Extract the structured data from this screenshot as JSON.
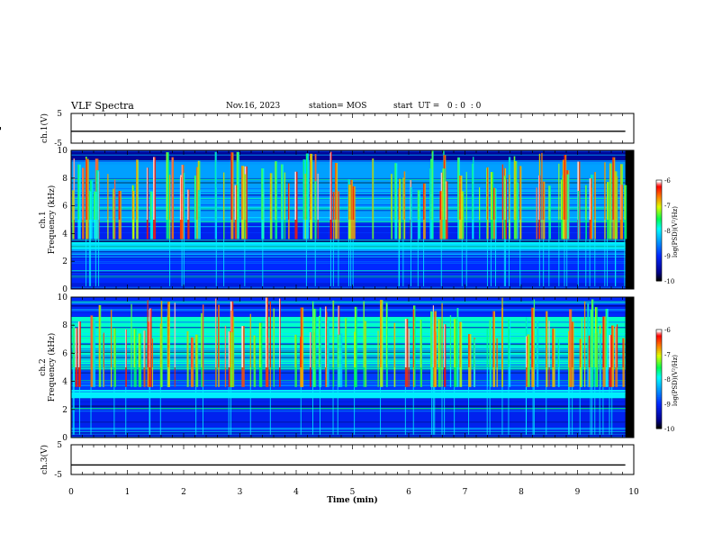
{
  "header": {
    "title": "VLF Spectra",
    "date": "Nov.16, 2023",
    "station": "station= MOS",
    "start": "start  UT =   0 : 0  : 0"
  },
  "chart_data": [
    {
      "type": "line",
      "name": "ch1-voltage",
      "ylabel": "ch.1(V)",
      "ylim": [
        -5,
        5
      ],
      "yticks": [
        "5",
        "-5"
      ],
      "x": [
        0,
        1,
        2,
        3,
        4,
        5,
        6,
        7,
        8,
        9,
        9.85
      ],
      "values": [
        -1,
        -1,
        -1,
        -1,
        -1,
        -1,
        -1,
        -1,
        -1,
        -1,
        -1
      ]
    },
    {
      "type": "heatmap",
      "name": "ch1-spectrogram",
      "ylabel": "ch.1\nFrequency (kHz)",
      "ylabel_ch": "ch.1",
      "ylabel_freq": "Frequency (kHz)",
      "ylim": [
        0,
        10
      ],
      "yticks": [
        "0",
        "2",
        "4",
        "6",
        "8",
        "10"
      ],
      "xlim": [
        0,
        10
      ],
      "data_end_min": 9.85,
      "color_scale": {
        "label": "log(PSD)(V²/Hz)",
        "range": [
          -10,
          -6
        ],
        "ticks": [
          "-6",
          "-7",
          "-8",
          "-9",
          "-10"
        ]
      },
      "bands_khz": [
        {
          "from": 0.0,
          "to": 0.4,
          "level": -9.2
        },
        {
          "from": 0.4,
          "to": 2.4,
          "level": -9.0
        },
        {
          "from": 2.4,
          "to": 2.8,
          "level": -8.6
        },
        {
          "from": 2.8,
          "to": 3.4,
          "level": -8.0
        },
        {
          "from": 3.4,
          "to": 4.8,
          "level": -9.1
        },
        {
          "from": 4.8,
          "to": 9.3,
          "level": -8.4
        },
        {
          "from": 9.3,
          "to": 10.0,
          "level": -9.6
        }
      ]
    },
    {
      "type": "heatmap",
      "name": "ch2-spectrogram",
      "ylabel": "ch.2\nFrequency (kHz)",
      "ylabel_ch": "ch.2",
      "ylabel_freq": "Frequency (kHz)",
      "ylim": [
        0,
        10
      ],
      "yticks": [
        "0",
        "2",
        "4",
        "6",
        "8",
        "10"
      ],
      "xlim": [
        0,
        10
      ],
      "data_end_min": 9.85,
      "color_scale": {
        "label": "log(PSD)(V²/Hz)",
        "range": [
          -10,
          -6
        ],
        "ticks": [
          "-6",
          "-7",
          "-8",
          "-9",
          "-10"
        ]
      },
      "bands_khz": [
        {
          "from": 0.0,
          "to": 0.4,
          "level": -9.3
        },
        {
          "from": 0.4,
          "to": 2.8,
          "level": -9.1
        },
        {
          "from": 2.8,
          "to": 3.4,
          "level": -8.0
        },
        {
          "from": 3.4,
          "to": 4.8,
          "level": -8.9
        },
        {
          "from": 4.8,
          "to": 8.6,
          "level": -7.8
        },
        {
          "from": 8.6,
          "to": 10.0,
          "level": -9.0
        }
      ]
    },
    {
      "type": "line",
      "name": "ch3-voltage",
      "ylabel": "ch.3(V)",
      "ylim": [
        -5,
        5
      ],
      "yticks": [
        "5",
        "-5"
      ],
      "x": [
        0,
        1,
        2,
        3,
        4,
        5,
        6,
        7,
        8,
        9,
        9.85
      ],
      "values": [
        -1.8,
        -1.8,
        -1.8,
        -1.8,
        -1.8,
        -1.8,
        -1.8,
        -1.8,
        -1.8,
        -1.8,
        -1.8
      ]
    }
  ],
  "x_axis": {
    "label": "Time  (min)",
    "xlim": [
      0,
      10
    ],
    "ticks": [
      "0",
      "1",
      "2",
      "3",
      "4",
      "5",
      "6",
      "7",
      "8",
      "9",
      "10"
    ]
  },
  "colors": {
    "colormap": [
      "#000000",
      "#00008f",
      "#0000ff",
      "#0080ff",
      "#00ffff",
      "#00ff00",
      "#ffff00",
      "#ff8000",
      "#ff0000",
      "#ffffff"
    ]
  }
}
